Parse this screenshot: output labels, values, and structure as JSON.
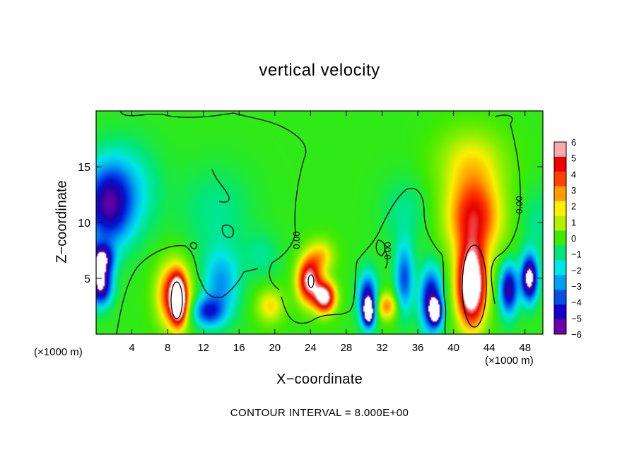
{
  "chart_data": {
    "type": "heatmap",
    "title": "vertical velocity",
    "xlabel": "X−coordinate",
    "ylabel": "Z−coordinate",
    "x_unit_label": "(×1000 m)",
    "x_ticks": [
      4,
      8,
      12,
      16,
      20,
      24,
      28,
      32,
      36,
      40,
      44,
      48
    ],
    "y_ticks": [
      5,
      10,
      15
    ],
    "xlim": [
      0,
      50
    ],
    "ylim": [
      0,
      20
    ],
    "colorbar": {
      "ticks": [
        "6",
        "5",
        "4",
        "3",
        "2",
        "1",
        "0",
        "−1",
        "−2",
        "−3",
        "−4",
        "−5",
        "−6"
      ],
      "range": [
        -6,
        6
      ]
    },
    "contour_labels": [
      "0.00",
      "0.00",
      "0.00"
    ],
    "footer": "CONTOUR INTERVAL = 8.000E+00",
    "features": [
      {
        "x": 1.3,
        "z": 11.5,
        "value": -5.5,
        "sx": 2.6,
        "sz": 3.5
      },
      {
        "x": 0.6,
        "z": 6.8,
        "value": -6.0,
        "sx": 1.3,
        "sz": 1.3
      },
      {
        "x": 0.5,
        "z": 4.5,
        "value": -7.5,
        "sx": 1.2,
        "sz": 1.8
      },
      {
        "x": 3.5,
        "z": 13.0,
        "value": -1.8,
        "sx": 3.5,
        "sz": 4.0
      },
      {
        "x": 8.7,
        "z": 3.5,
        "value": 5.5,
        "sx": 1.8,
        "sz": 2.8
      },
      {
        "x": 9.2,
        "z": 3.0,
        "value": 7.0,
        "sx": 0.8,
        "sz": 2.0
      },
      {
        "x": 12.5,
        "z": 2.0,
        "value": -4.2,
        "sx": 1.7,
        "sz": 1.3
      },
      {
        "x": 14.0,
        "z": 4.5,
        "value": -3.0,
        "sx": 2.0,
        "sz": 3.0
      },
      {
        "x": 13.5,
        "z": 11.0,
        "value": -1.0,
        "sx": 4.0,
        "sz": 4.0
      },
      {
        "x": 19.5,
        "z": 2.5,
        "value": 2.5,
        "sx": 1.5,
        "sz": 1.5
      },
      {
        "x": 18.5,
        "z": 7.0,
        "value": -1.0,
        "sx": 2.0,
        "sz": 2.0
      },
      {
        "x": 23.8,
        "z": 4.8,
        "value": 6.5,
        "sx": 1.3,
        "sz": 2.0
      },
      {
        "x": 25.6,
        "z": 3.3,
        "value": 7.0,
        "sx": 1.2,
        "sz": 1.4
      },
      {
        "x": 25.2,
        "z": 7.0,
        "value": 2.5,
        "sx": 1.5,
        "sz": 1.5
      },
      {
        "x": 30.4,
        "z": 3.0,
        "value": -6.0,
        "sx": 1.0,
        "sz": 2.3
      },
      {
        "x": 30.5,
        "z": 2.0,
        "value": -8.0,
        "sx": 0.5,
        "sz": 1.0
      },
      {
        "x": 32.5,
        "z": 2.5,
        "value": 3.5,
        "sx": 1.2,
        "sz": 1.2
      },
      {
        "x": 34.5,
        "z": 5.0,
        "value": -4.0,
        "sx": 1.0,
        "sz": 3.0
      },
      {
        "x": 37.5,
        "z": 3.0,
        "value": -6.0,
        "sx": 1.2,
        "sz": 2.8
      },
      {
        "x": 38.0,
        "z": 2.0,
        "value": -8.0,
        "sx": 0.6,
        "sz": 1.0
      },
      {
        "x": 34.5,
        "z": 11.0,
        "value": -1.0,
        "sx": 2.5,
        "sz": 3.0
      },
      {
        "x": 42.0,
        "z": 4.3,
        "value": 9.0,
        "sx": 1.6,
        "sz": 3.5
      },
      {
        "x": 42.3,
        "z": 10.5,
        "value": 5.0,
        "sx": 3.0,
        "sz": 3.5
      },
      {
        "x": 42.0,
        "z": 15.5,
        "value": 2.0,
        "sx": 3.8,
        "sz": 3.0
      },
      {
        "x": 46.2,
        "z": 4.0,
        "value": -6.0,
        "sx": 1.0,
        "sz": 2.2
      },
      {
        "x": 48.5,
        "z": 5.0,
        "value": -8.0,
        "sx": 0.9,
        "sz": 2.0
      },
      {
        "x": 49.5,
        "z": 10.0,
        "value": -1.0,
        "sx": 2.0,
        "sz": 3.0
      }
    ]
  }
}
